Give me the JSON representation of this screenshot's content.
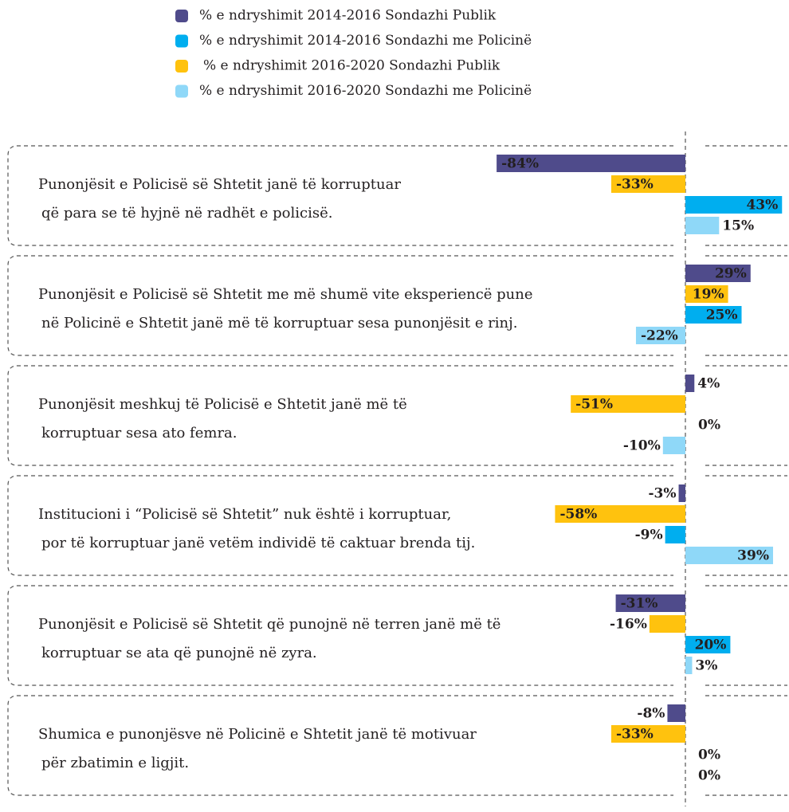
{
  "chart_data": {
    "type": "hbar",
    "categories": [
      [
        "Punonjësit e Policisë së Shtetit janë të korruptuar",
        "që para se të hyjnë në radhët e policisë."
      ],
      [
        "Punonjësit e Policisë së Shtetit me më shumë vite eksperiencë pune",
        "në Policinë e Shtetit janë më të korruptuar sesa punonjësit e  rinj."
      ],
      [
        "Punonjësit meshkuj të Policisë e Shtetit janë më të",
        "korruptuar sesa ato femra."
      ],
      [
        "Institucioni i “Policisë së Shtetit” nuk është i korruptuar,",
        "por të korruptuar janë vetëm individë të caktuar brenda tij."
      ],
      [
        "Punonjësit e Policisë së Shtetit që punojnë në terren janë më të",
        "korruptuar se ata që punojnë në zyra."
      ],
      [
        "Shumica e punonjësve në Policinë e Shtetit janë të motivuar",
        "për zbatimin e ligjit."
      ]
    ],
    "series": [
      {
        "name": "% e ndryshimit 2014-2016 Sondazhi Publik",
        "color": "#4f4b8b",
        "values": [
          -84,
          29,
          4,
          -3,
          -31,
          -8
        ],
        "value_labels": [
          "-84%",
          "29%",
          "4%",
          "-3%",
          "-31%",
          "-8%"
        ]
      },
      {
        "name": "% e ndryshimit 2014-2016 Sondazhi me Policinë",
        "color": "#00aeef",
        "values": [
          43,
          25,
          0,
          -9,
          20,
          0
        ],
        "value_labels": [
          "43%",
          "25%",
          "0%",
          "-9%",
          "20%",
          "0%"
        ]
      },
      {
        "name": "% e ndryshimit 2016-2020 Sondazhi Publik",
        "color": "#ffc20e",
        "values": [
          -33,
          19,
          -51,
          -58,
          -16,
          -33
        ],
        "value_labels": [
          "-33%",
          "19%",
          "-51%",
          "-58%",
          "-16%",
          "-33%"
        ]
      },
      {
        "name": "% e ndryshimit 2016-2020 Sondazhi me Policinë",
        "color": "#8fd8f8",
        "values": [
          15,
          -22,
          -10,
          39,
          3,
          0
        ],
        "value_labels": [
          "15%",
          "-22%",
          "-10%",
          "39%",
          "3%",
          "0%"
        ]
      }
    ]
  }
}
